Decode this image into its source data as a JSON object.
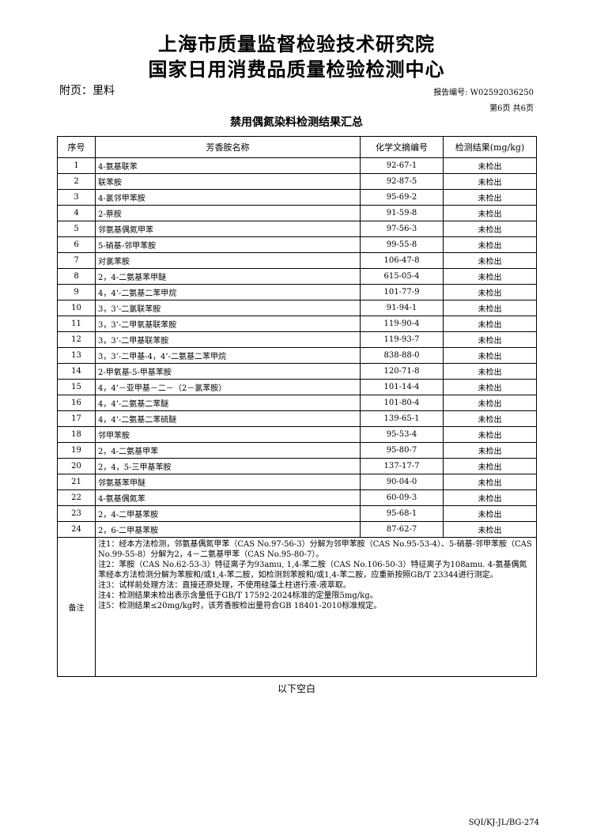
{
  "header": {
    "line1": "上海市质量监督检验技术研究院",
    "line2": "国家日用消费品质量检验检测中心",
    "attachment": "附页：里料",
    "report_no": "报告编号: W02592036250",
    "page": "第6页 共6页"
  },
  "table": {
    "title": "禁用偶氮染料检测结果汇总",
    "columns": [
      "序号",
      "芳香胺名称",
      "化学文摘编号",
      "检测结果(mg/kg)"
    ],
    "rows": [
      [
        "1",
        "4-氨基联苯",
        "92-67-1",
        "未检出"
      ],
      [
        "2",
        "联苯胺",
        "92-87-5",
        "未检出"
      ],
      [
        "3",
        "4-氯邻甲苯胺",
        "95-69-2",
        "未检出"
      ],
      [
        "4",
        "2-萘胺",
        "91-59-8",
        "未检出"
      ],
      [
        "5",
        "邻氨基偶氮甲苯",
        "97-56-3",
        "未检出"
      ],
      [
        "6",
        "5-硝基-邻甲苯胺",
        "99-55-8",
        "未检出"
      ],
      [
        "7",
        "对氯苯胺",
        "106-47-8",
        "未检出"
      ],
      [
        "8",
        "2，4-二氨基苯甲醚",
        "615-05-4",
        "未检出"
      ],
      [
        "9",
        "4，4’-二氨基二苯甲烷",
        "101-77-9",
        "未检出"
      ],
      [
        "10",
        "3，3’-二氯联苯胺",
        "91-94-1",
        "未检出"
      ],
      [
        "11",
        "3，3’-二甲氧基联苯胺",
        "119-90-4",
        "未检出"
      ],
      [
        "12",
        "3，3’-二甲基联苯胺",
        "119-93-7",
        "未检出"
      ],
      [
        "13",
        "3，3’-二甲基-4，4’-二氨基二苯甲烷",
        "838-88-0",
        "未检出"
      ],
      [
        "14",
        "2-甲氧基-5-甲基苯胺",
        "120-71-8",
        "未检出"
      ],
      [
        "15",
        "4，4’－亚甲基－二－（2－氯苯胺）",
        "101-14-4",
        "未检出"
      ],
      [
        "16",
        "4，4’-二氨基二苯醚",
        "101-80-4",
        "未检出"
      ],
      [
        "17",
        "4，4’-二氨基二苯硫醚",
        "139-65-1",
        "未检出"
      ],
      [
        "18",
        "邻甲苯胺",
        "95-53-4",
        "未检出"
      ],
      [
        "19",
        "2，4-二氨基甲苯",
        "95-80-7",
        "未检出"
      ],
      [
        "20",
        "2，4，5-三甲基苯胺",
        "137-17-7",
        "未检出"
      ],
      [
        "21",
        "邻氨基苯甲醚",
        "90-04-0",
        "未检出"
      ],
      [
        "22",
        "4-氨基偶氮苯",
        "60-09-3",
        "未检出"
      ],
      [
        "23",
        "2，4-二甲基苯胺",
        "95-68-1",
        "未检出"
      ],
      [
        "24",
        "2，6-二甲基苯胺",
        "87-62-7",
        "未检出"
      ]
    ],
    "remark_label": "备注",
    "remarks": [
      "注1：经本方法检测，邻氨基偶氮甲苯（CAS No.97-56-3）分解为邻甲苯胺（CAS No.95-53-4）、5-硝基-邻甲苯胺（CAS No.99-55-8）分解为2，4－二氨基甲苯（CAS No.95-80-7）。",
      "注2：苯胺（CAS No.62-53-3）特征离子为93amu, 1,4-苯二胺（CAS No.106-50-3）特征离子为108amu. 4-氨基偶氮苯经本方法检测分解为苯胺和/或1,4-苯二胺，如检测到苯胺和/或1,4-苯二胺，应重新按照GB/T 23344进行测定。",
      "注3：试样前处理方法：直接还原处理，不使用硅藻土柱进行液-液萃取。",
      "注4：检测结果未检出表示含量低于GB/T 17592-2024标准的定量限5mg/kg。",
      "注5：检测结果≤20mg/kg时，该芳香胺检出量符合GB 18401-2010标准规定。"
    ]
  },
  "footer": {
    "blank_note": "以下空白",
    "code": "SQI/KJ-JL/BG-274"
  }
}
